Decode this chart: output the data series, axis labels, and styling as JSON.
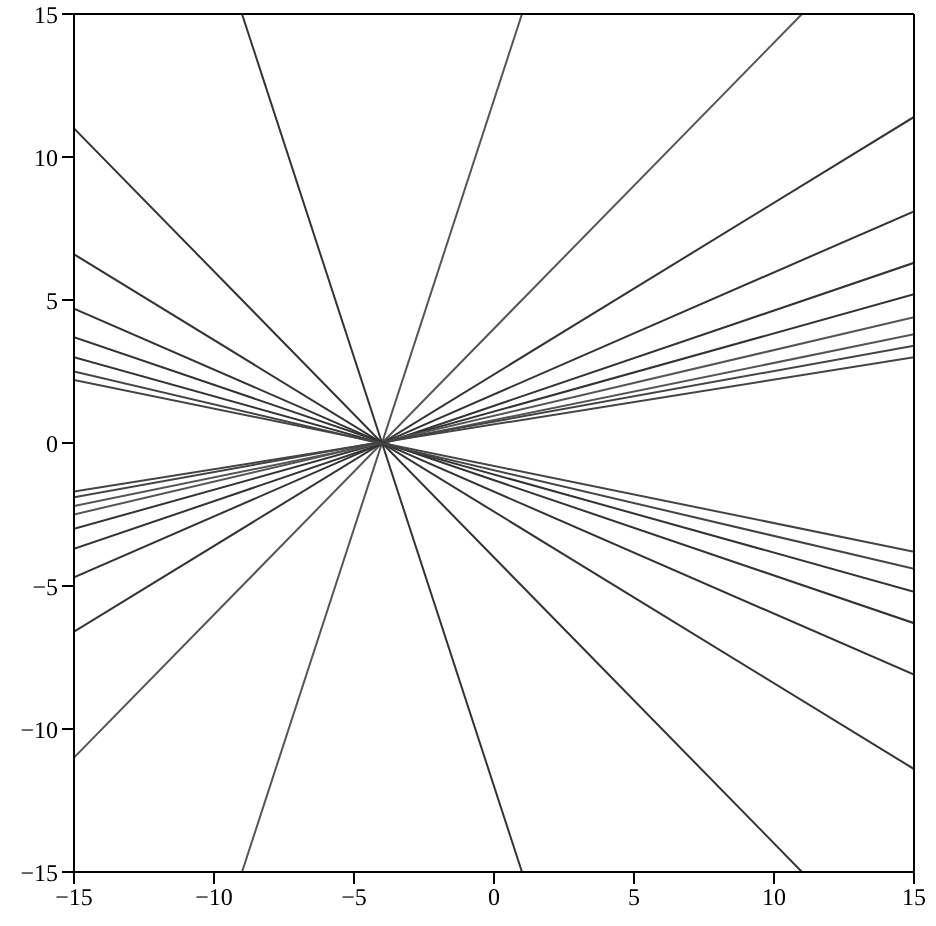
{
  "chart_data": {
    "type": "line",
    "xlim": [
      -15,
      15
    ],
    "ylim": [
      -15,
      15
    ],
    "xticks": [
      -15,
      -10,
      -5,
      0,
      5,
      10,
      15
    ],
    "yticks": [
      -15,
      -10,
      -5,
      0,
      5,
      10,
      15
    ],
    "marker": "none",
    "line_style": "solid",
    "series": [
      {
        "color": "#555555",
        "x": [
          -9,
          1
        ],
        "values": [
          -15,
          15
        ]
      },
      {
        "color": "#333333",
        "x": [
          -9,
          1
        ],
        "values": [
          15,
          -15
        ]
      },
      {
        "color": "#555555",
        "x": [
          -15,
          11
        ],
        "values": [
          -11,
          15
        ]
      },
      {
        "color": "#333333",
        "x": [
          -15,
          11
        ],
        "values": [
          11,
          -15
        ]
      },
      {
        "color": "#333333",
        "x": [
          -15,
          15
        ],
        "values": [
          -6.6,
          11.4
        ]
      },
      {
        "color": "#333333",
        "x": [
          -15,
          15
        ],
        "values": [
          -4.7,
          8.1
        ]
      },
      {
        "color": "#333333",
        "x": [
          -15,
          15
        ],
        "values": [
          -3.7,
          6.3
        ]
      },
      {
        "color": "#333333",
        "x": [
          -15,
          15
        ],
        "values": [
          -3.0,
          5.2
        ]
      },
      {
        "color": "#555555",
        "x": [
          -15,
          15
        ],
        "values": [
          -2.5,
          4.4
        ]
      },
      {
        "color": "#555555",
        "x": [
          -15,
          15
        ],
        "values": [
          -2.2,
          3.8
        ]
      },
      {
        "color": "#444444",
        "x": [
          -15,
          15
        ],
        "values": [
          -1.9,
          3.4
        ]
      },
      {
        "color": "#444444",
        "x": [
          -15,
          15
        ],
        "values": [
          -1.7,
          3.0
        ]
      },
      {
        "color": "#333333",
        "x": [
          -15,
          15
        ],
        "values": [
          6.6,
          -11.4
        ]
      },
      {
        "color": "#333333",
        "x": [
          -15,
          15
        ],
        "values": [
          4.7,
          -8.1
        ]
      },
      {
        "color": "#333333",
        "x": [
          -15,
          15
        ],
        "values": [
          3.7,
          -6.3
        ]
      },
      {
        "color": "#333333",
        "x": [
          -15,
          15
        ],
        "values": [
          3.0,
          -5.2
        ]
      },
      {
        "color": "#444444",
        "x": [
          -15,
          15
        ],
        "values": [
          2.5,
          -4.4
        ]
      },
      {
        "color": "#444444",
        "x": [
          -15,
          15
        ],
        "values": [
          2.2,
          -3.8
        ]
      }
    ]
  }
}
